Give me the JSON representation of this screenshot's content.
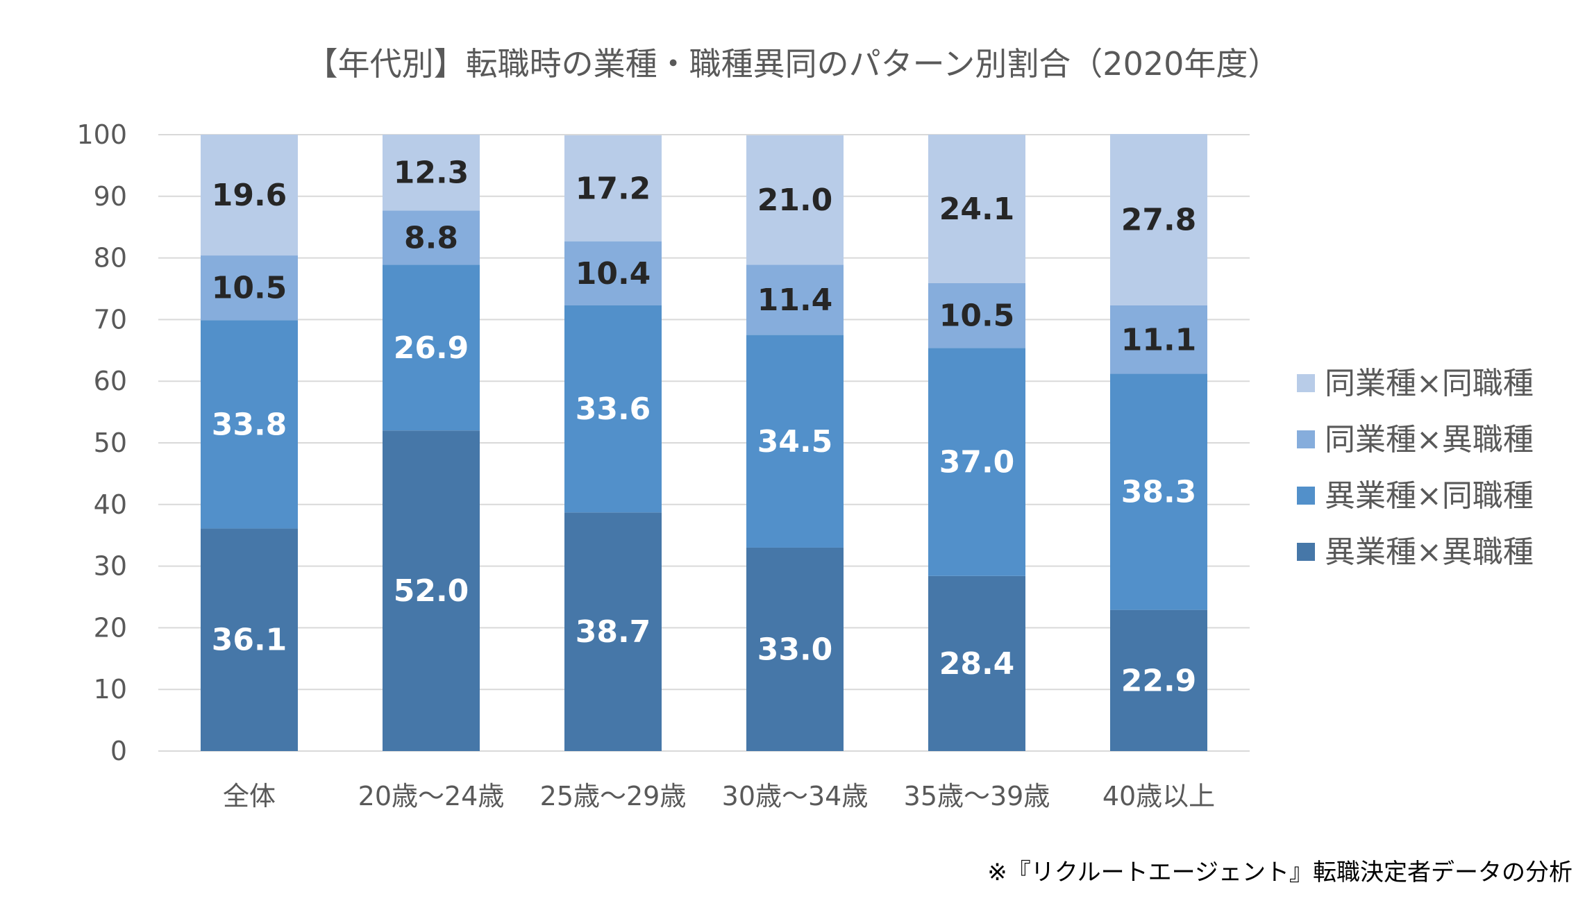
{
  "chart_data": {
    "type": "bar",
    "stacked": true,
    "title": "【年代別】転職時の業種・職種異同のパターン別割合（2020年度）",
    "categories": [
      "全体",
      "20歳～24歳",
      "25歳～29歳",
      "30歳～34歳",
      "35歳～39歳",
      "40歳以上"
    ],
    "series": [
      {
        "name": "異業種×異職種",
        "color": "#4677A8",
        "label_color": "#ffffff",
        "values": [
          36.1,
          52.0,
          38.7,
          33.0,
          28.4,
          22.9
        ]
      },
      {
        "name": "異業種×同職種",
        "color": "#5290CA",
        "label_color": "#ffffff",
        "values": [
          33.8,
          26.9,
          33.6,
          34.5,
          37.0,
          38.3
        ]
      },
      {
        "name": "同業種×異職種",
        "color": "#86ADDC",
        "label_color": "#262626",
        "values": [
          10.5,
          8.8,
          10.4,
          11.4,
          10.5,
          11.1
        ]
      },
      {
        "name": "同業種×同職種",
        "color": "#B8CCE8",
        "label_color": "#262626",
        "values": [
          19.6,
          12.3,
          17.2,
          21.0,
          24.1,
          27.8
        ]
      }
    ],
    "ylim": [
      0,
      100
    ],
    "yticks": [
      0,
      10,
      20,
      30,
      40,
      50,
      60,
      70,
      80,
      90,
      100
    ],
    "xlabel": "",
    "ylabel": "",
    "grid": true,
    "gridline_color": "#D9D9D9",
    "legend_position": "right",
    "legend_order": [
      "同業種×同職種",
      "同業種×異職種",
      "異業種×同職種",
      "異業種×異職種"
    ]
  },
  "source_note": "※『リクルートエージェント』転職決定者データの分析"
}
